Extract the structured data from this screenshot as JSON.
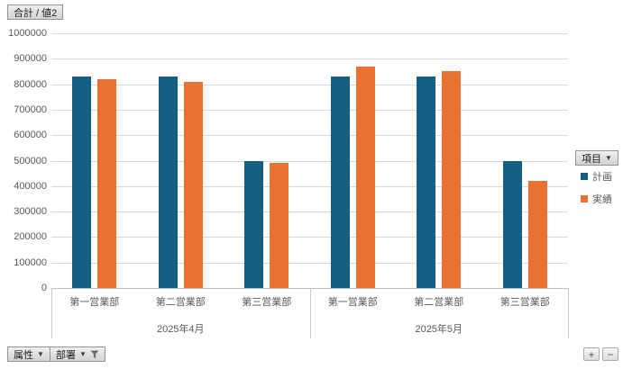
{
  "pivot_buttons": {
    "value_field": "合計 / 値2",
    "legend_field": "項目",
    "axis_fields": [
      {
        "label": "属性",
        "filtered": false
      },
      {
        "label": "部署",
        "filtered": true
      }
    ],
    "expand_label": "+",
    "collapse_label": "−"
  },
  "icons": {
    "dropdown_arrow": "▼",
    "filter": "funnel-icon"
  },
  "chart_data": {
    "type": "bar",
    "title": "合計 / 値2",
    "categories": [
      "第一営業部",
      "第二営業部",
      "第三営業部",
      "第一営業部",
      "第二営業部",
      "第三営業部"
    ],
    "month_groups": [
      "2025年4月",
      "2025年5月"
    ],
    "series": [
      {
        "name": "計画",
        "color": "#156082",
        "values": [
          830000,
          830000,
          500000,
          830000,
          830000,
          500000
        ]
      },
      {
        "name": "実績",
        "color": "#E97132",
        "values": [
          820000,
          810000,
          490000,
          870000,
          850000,
          420000
        ]
      }
    ],
    "ylim": [
      0,
      1000000
    ],
    "yticks": [
      0,
      100000,
      200000,
      300000,
      400000,
      500000,
      600000,
      700000,
      800000,
      900000,
      1000000
    ],
    "grid": true,
    "legend_position": "right",
    "gridline_color": "#d9d9d9",
    "axis_text_color": "#595959"
  }
}
